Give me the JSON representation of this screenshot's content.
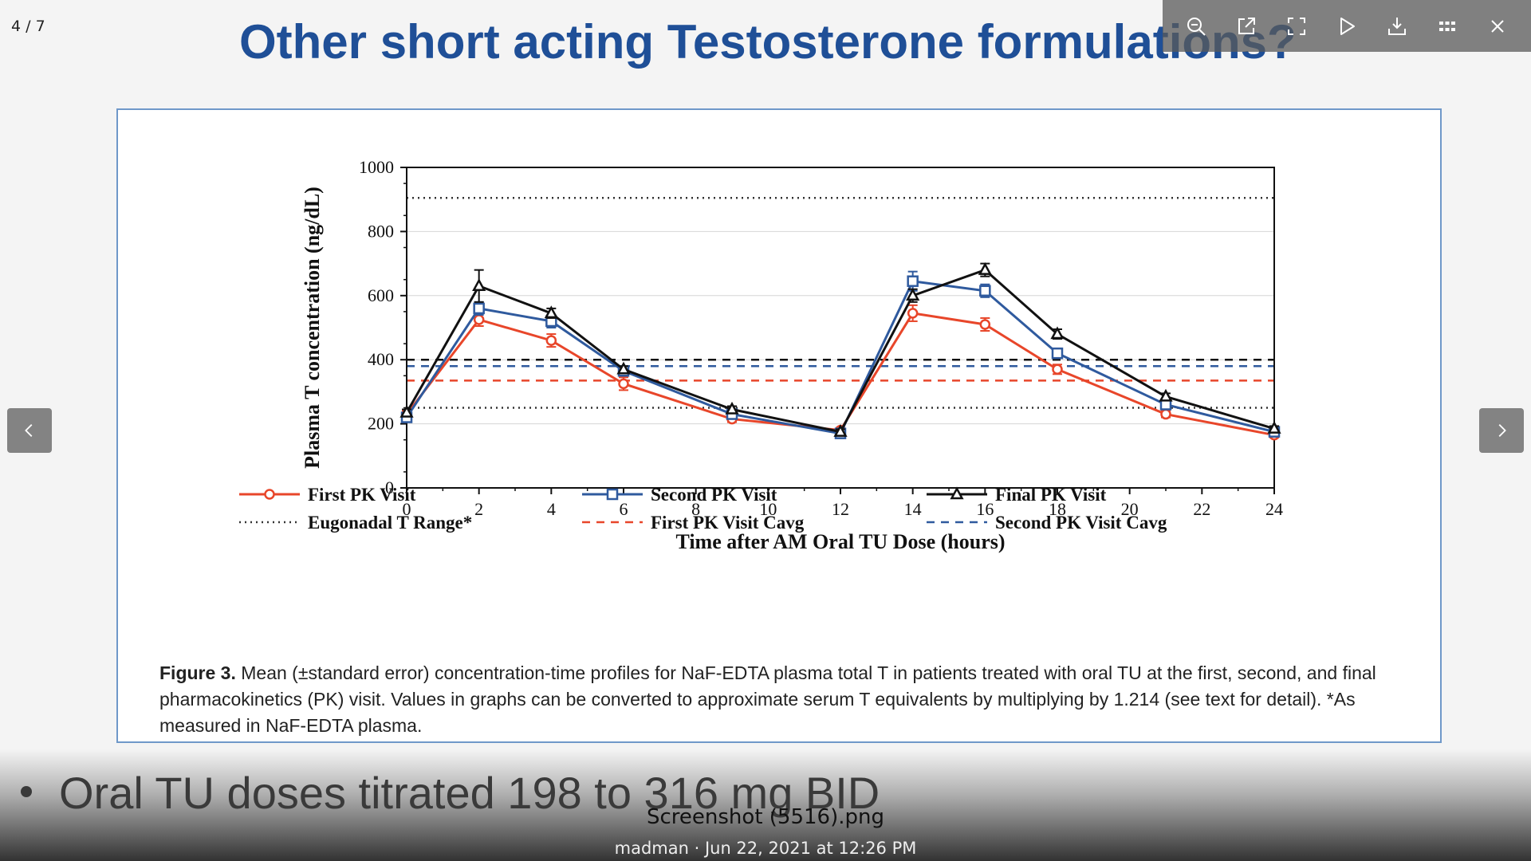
{
  "viewer": {
    "counter": "4 / 7",
    "toolbar": [
      {
        "name": "zoom-out-icon"
      },
      {
        "name": "open-external-icon"
      },
      {
        "name": "fullscreen-icon"
      },
      {
        "name": "play-slideshow-icon"
      },
      {
        "name": "download-icon"
      },
      {
        "name": "grid-view-icon"
      },
      {
        "name": "close-icon"
      }
    ],
    "file_name": "Screenshot (5516).png",
    "file_meta": "madman · Jun 22, 2021 at 12:26 PM"
  },
  "slide": {
    "title": "Other short acting Testosterone formulations?",
    "bullet": "Oral TU doses titrated 198 to 316 mg BID",
    "caption": {
      "label": "Figure 3.",
      "text": " Mean (±standard error) concentration-time profiles for NaF-EDTA plasma total T in patients treated with oral TU at the first, second, and final pharmacokinetics (PK) visit. Values in graphs can be converted to approximate serum T equivalents by multiplying by 1.214 (see text for detail). *As measured in NaF-EDTA plasma."
    }
  },
  "chart_data": {
    "type": "line",
    "xlabel": "Time after AM Oral TU Dose (hours)",
    "ylabel": "Plasma T concentration (ng/dL)",
    "xlim": [
      0,
      24
    ],
    "ylim": [
      0,
      1000
    ],
    "xticks": [
      0,
      2,
      4,
      6,
      8,
      10,
      12,
      14,
      16,
      18,
      20,
      22,
      24
    ],
    "yticks": [
      0,
      200,
      400,
      600,
      800,
      1000
    ],
    "legend_placement": "bottom",
    "series": [
      {
        "name": "First PK Visit",
        "color": "#e8462a",
        "marker": "circle",
        "x": [
          0,
          2,
          4,
          6,
          9,
          12,
          14,
          16,
          18,
          21,
          24
        ],
        "y": [
          230,
          525,
          460,
          325,
          215,
          180,
          545,
          510,
          370,
          230,
          165
        ],
        "err": [
          10,
          20,
          20,
          20,
          10,
          8,
          25,
          20,
          15,
          10,
          8
        ]
      },
      {
        "name": "Second PK Visit",
        "color": "#2f5a9e",
        "marker": "square",
        "x": [
          0,
          2,
          4,
          6,
          9,
          12,
          14,
          16,
          18,
          21,
          24
        ],
        "y": [
          220,
          560,
          520,
          365,
          230,
          170,
          645,
          615,
          420,
          260,
          175
        ],
        "err": [
          10,
          20,
          20,
          15,
          10,
          8,
          30,
          20,
          15,
          10,
          8
        ]
      },
      {
        "name": "Final PK Visit",
        "color": "#111111",
        "marker": "triangle",
        "x": [
          0,
          2,
          4,
          6,
          9,
          12,
          14,
          16,
          18,
          21,
          24
        ],
        "y": [
          235,
          630,
          545,
          370,
          245,
          175,
          600,
          680,
          480,
          285,
          185
        ],
        "err": [
          10,
          50,
          15,
          10,
          10,
          8,
          20,
          20,
          15,
          10,
          8
        ]
      }
    ],
    "reference_lines": [
      {
        "name": "Eugonadal T Range*",
        "color": "#333333",
        "style": "dotted",
        "y": [
          905,
          250
        ]
      },
      {
        "name": "First PK Visit Cavg",
        "color": "#e8462a",
        "style": "dashed",
        "y": [
          335
        ]
      },
      {
        "name": "Second PK Visit Cavg",
        "color": "#2f5a9e",
        "style": "dashed",
        "y": [
          380
        ]
      },
      {
        "name": "",
        "color": "#111111",
        "style": "dashed",
        "y": [
          400
        ]
      }
    ],
    "gridlines_y": [
      200,
      400,
      600,
      800
    ]
  }
}
